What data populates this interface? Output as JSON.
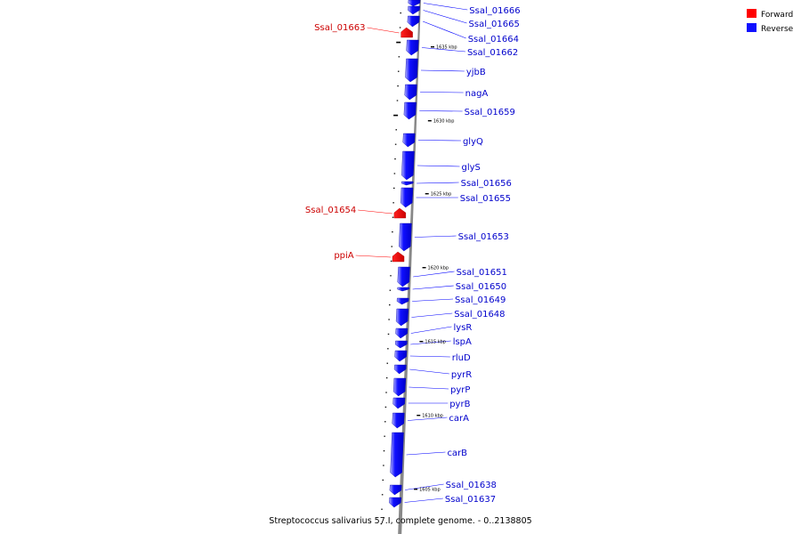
{
  "caption": "Streptococcus salivarius 57.I, complete genome. - 0..2138805",
  "legend": {
    "forward": {
      "label": "Forward",
      "color": "#ff0000"
    },
    "reverse": {
      "label": "Reverse",
      "color": "#1010ff"
    }
  },
  "colors": {
    "backbone": "#888888",
    "reverse_light": "#a8a8ff",
    "forward_label": "#cc0000",
    "reverse_label": "#0000cc"
  },
  "kbp_labels": [
    "1635 kbp",
    "1630 kbp",
    "1625 kbp",
    "1620 kbp",
    "1615 kbp",
    "1610 kbp",
    "1605 kbp"
  ],
  "forward_genes": [
    "Ssal_01663",
    "Ssal_01654",
    "ppiA"
  ],
  "reverse_genes": [
    "Ssal_01666",
    "Ssal_01665",
    "Ssal_01664",
    "Ssal_01662",
    "yjbB",
    "nagA",
    "Ssal_01659",
    "glyQ",
    "glyS",
    "Ssal_01656",
    "Ssal_01655",
    "Ssal_01653",
    "Ssal_01651",
    "Ssal_01650",
    "Ssal_01649",
    "Ssal_01648",
    "lysR",
    "lspA",
    "rluD",
    "pyrR",
    "pyrP",
    "pyrB",
    "carA",
    "carB",
    "Ssal_01638",
    "Ssal_01637"
  ]
}
